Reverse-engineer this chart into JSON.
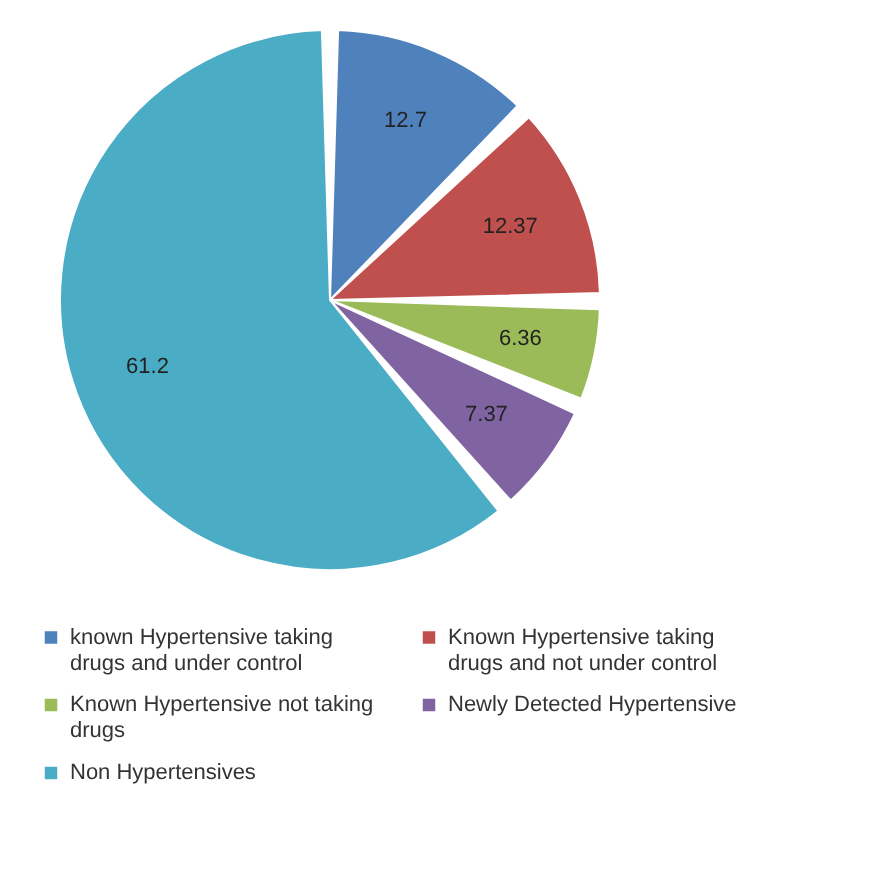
{
  "chart_data": {
    "type": "pie",
    "categories": [
      "known Hypertensive taking drugs and under control",
      "Known Hypertensive taking drugs and not under control",
      "Known Hypertensive not taking drugs",
      "Newly Detected Hypertensive",
      "Non Hypertensives"
    ],
    "values": [
      12.7,
      12.37,
      6.36,
      7.37,
      61.2
    ],
    "colors": [
      "#4f81bd",
      "#c0504d",
      "#9bbb59",
      "#8064a2",
      "#4bacc6"
    ],
    "data_labels": true,
    "legend": "bottom"
  }
}
